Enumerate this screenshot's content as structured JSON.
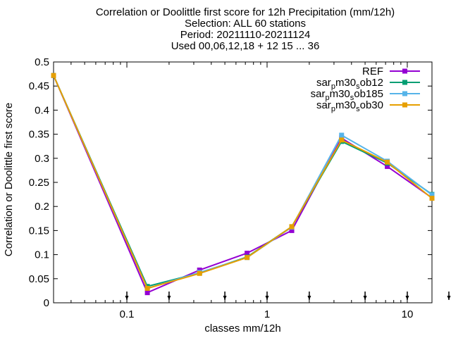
{
  "title_lines": [
    "Correlation or Doolittle first score  for 12h Precipitation (mm/12h)",
    "Selection: ALL     60 stations",
    "Period: 20211110-20211124",
    "Used 00,06,12,18 + 12 15 ... 36"
  ],
  "chart_data": {
    "type": "line",
    "xlabel": "classes mm/12h",
    "ylabel": "Correlation or Doolittle first score",
    "xscale": "log",
    "xlim": [
      0.03,
      15
    ],
    "ylim": [
      0,
      0.5
    ],
    "x_ticks": [
      "0.1",
      "1",
      "10"
    ],
    "y_ticks": [
      "0",
      "0.05",
      "0.1",
      "0.15",
      "0.2",
      "0.25",
      "0.3",
      "0.35",
      "0.4",
      "0.45",
      "0.5"
    ],
    "class_markers_x": [
      0.1,
      0.2,
      0.5,
      1,
      2,
      5,
      10,
      20
    ],
    "legend_position": "top-right",
    "x": [
      0.03,
      0.14,
      0.33,
      0.72,
      1.5,
      3.4,
      7.2,
      15
    ],
    "series": [
      {
        "name": "REF",
        "color": "#9400d3",
        "values": [
          0.472,
          0.021,
          0.068,
          0.103,
          0.15,
          0.342,
          0.283,
          0.218
        ]
      },
      {
        "name": "sar_pm30_sob12",
        "color": "#009e73",
        "values": [
          0.472,
          0.034,
          0.062,
          0.095,
          0.158,
          0.335,
          0.29,
          0.225
        ]
      },
      {
        "name": "sar_pm30_sob185",
        "color": "#56b4e9",
        "values": [
          0.472,
          0.03,
          0.063,
          0.094,
          0.157,
          0.348,
          0.294,
          0.224
        ]
      },
      {
        "name": "sar_pm30_sob30",
        "color": "#e69f00",
        "values": [
          0.472,
          0.03,
          0.061,
          0.094,
          0.158,
          0.338,
          0.292,
          0.217
        ]
      }
    ]
  }
}
